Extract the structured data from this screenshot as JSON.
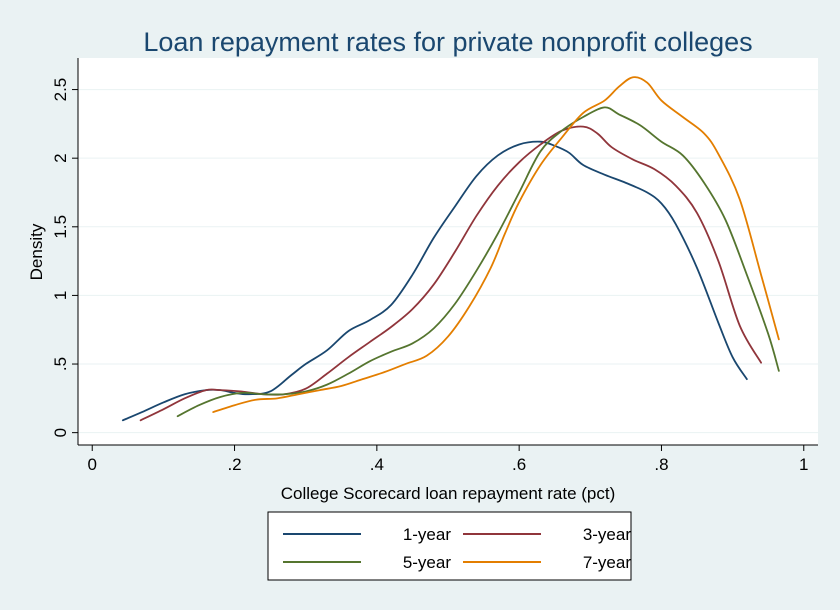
{
  "chart_data": {
    "type": "line",
    "title": "Loan repayment rates for private nonprofit colleges",
    "xlabel": "College Scorecard loan repayment rate (pct)",
    "ylabel": "Density",
    "xlim": [
      -0.02,
      1.02
    ],
    "ylim": [
      -0.09,
      2.73
    ],
    "x_ticks": [
      {
        "value": 0,
        "label": "0"
      },
      {
        "value": 0.2,
        "label": ".2"
      },
      {
        "value": 0.4,
        "label": ".4"
      },
      {
        "value": 0.6,
        "label": ".6"
      },
      {
        "value": 0.8,
        "label": ".8"
      },
      {
        "value": 1,
        "label": "1"
      }
    ],
    "y_ticks": [
      {
        "value": 0,
        "label": "0"
      },
      {
        "value": 0.5,
        "label": ".5"
      },
      {
        "value": 1,
        "label": "1"
      },
      {
        "value": 1.5,
        "label": "1.5"
      },
      {
        "value": 2,
        "label": "2"
      },
      {
        "value": 2.5,
        "label": "2.5"
      }
    ],
    "grid": "horizontal",
    "legend_position": "bottom",
    "colors": {
      "background": "#eaf2f3",
      "plot_background": "#ffffff",
      "grid": "#eaf2f3",
      "title": "#1a476f"
    },
    "series": [
      {
        "name": "1-year",
        "color": "#1a476f",
        "points": [
          [
            0.043,
            0.09
          ],
          [
            0.07,
            0.15
          ],
          [
            0.1,
            0.22
          ],
          [
            0.13,
            0.28
          ],
          [
            0.16,
            0.31
          ],
          [
            0.18,
            0.31
          ],
          [
            0.2,
            0.29
          ],
          [
            0.22,
            0.28
          ],
          [
            0.25,
            0.3
          ],
          [
            0.28,
            0.42
          ],
          [
            0.3,
            0.5
          ],
          [
            0.33,
            0.6
          ],
          [
            0.36,
            0.74
          ],
          [
            0.39,
            0.82
          ],
          [
            0.42,
            0.93
          ],
          [
            0.45,
            1.15
          ],
          [
            0.48,
            1.42
          ],
          [
            0.51,
            1.65
          ],
          [
            0.54,
            1.87
          ],
          [
            0.57,
            2.02
          ],
          [
            0.6,
            2.1
          ],
          [
            0.63,
            2.12
          ],
          [
            0.65,
            2.09
          ],
          [
            0.67,
            2.04
          ],
          [
            0.69,
            1.95
          ],
          [
            0.72,
            1.88
          ],
          [
            0.75,
            1.82
          ],
          [
            0.78,
            1.75
          ],
          [
            0.8,
            1.67
          ],
          [
            0.82,
            1.52
          ],
          [
            0.85,
            1.2
          ],
          [
            0.88,
            0.8
          ],
          [
            0.9,
            0.55
          ],
          [
            0.92,
            0.39
          ]
        ]
      },
      {
        "name": "3-year",
        "color": "#90353b",
        "points": [
          [
            0.068,
            0.09
          ],
          [
            0.1,
            0.17
          ],
          [
            0.13,
            0.25
          ],
          [
            0.16,
            0.31
          ],
          [
            0.18,
            0.31
          ],
          [
            0.21,
            0.3
          ],
          [
            0.24,
            0.28
          ],
          [
            0.27,
            0.28
          ],
          [
            0.3,
            0.32
          ],
          [
            0.33,
            0.43
          ],
          [
            0.36,
            0.55
          ],
          [
            0.39,
            0.66
          ],
          [
            0.42,
            0.77
          ],
          [
            0.45,
            0.9
          ],
          [
            0.48,
            1.08
          ],
          [
            0.51,
            1.32
          ],
          [
            0.54,
            1.58
          ],
          [
            0.57,
            1.8
          ],
          [
            0.6,
            1.97
          ],
          [
            0.63,
            2.1
          ],
          [
            0.66,
            2.2
          ],
          [
            0.69,
            2.23
          ],
          [
            0.71,
            2.18
          ],
          [
            0.73,
            2.08
          ],
          [
            0.76,
            1.99
          ],
          [
            0.79,
            1.92
          ],
          [
            0.82,
            1.8
          ],
          [
            0.85,
            1.6
          ],
          [
            0.88,
            1.25
          ],
          [
            0.91,
            0.78
          ],
          [
            0.94,
            0.51
          ]
        ]
      },
      {
        "name": "5-year",
        "color": "#55752f",
        "points": [
          [
            0.12,
            0.12
          ],
          [
            0.15,
            0.2
          ],
          [
            0.18,
            0.26
          ],
          [
            0.21,
            0.29
          ],
          [
            0.24,
            0.28
          ],
          [
            0.27,
            0.28
          ],
          [
            0.3,
            0.3
          ],
          [
            0.33,
            0.35
          ],
          [
            0.36,
            0.43
          ],
          [
            0.39,
            0.52
          ],
          [
            0.42,
            0.59
          ],
          [
            0.45,
            0.65
          ],
          [
            0.48,
            0.76
          ],
          [
            0.51,
            0.94
          ],
          [
            0.54,
            1.18
          ],
          [
            0.57,
            1.45
          ],
          [
            0.6,
            1.75
          ],
          [
            0.63,
            2.05
          ],
          [
            0.66,
            2.2
          ],
          [
            0.69,
            2.3
          ],
          [
            0.72,
            2.37
          ],
          [
            0.74,
            2.32
          ],
          [
            0.77,
            2.24
          ],
          [
            0.8,
            2.12
          ],
          [
            0.83,
            2.02
          ],
          [
            0.86,
            1.82
          ],
          [
            0.89,
            1.55
          ],
          [
            0.92,
            1.15
          ],
          [
            0.95,
            0.72
          ],
          [
            0.965,
            0.45
          ]
        ]
      },
      {
        "name": "7-year",
        "color": "#e37e00",
        "points": [
          [
            0.17,
            0.15
          ],
          [
            0.2,
            0.2
          ],
          [
            0.23,
            0.24
          ],
          [
            0.26,
            0.25
          ],
          [
            0.29,
            0.28
          ],
          [
            0.32,
            0.31
          ],
          [
            0.35,
            0.34
          ],
          [
            0.38,
            0.39
          ],
          [
            0.41,
            0.44
          ],
          [
            0.44,
            0.5
          ],
          [
            0.47,
            0.56
          ],
          [
            0.5,
            0.7
          ],
          [
            0.53,
            0.92
          ],
          [
            0.56,
            1.2
          ],
          [
            0.58,
            1.45
          ],
          [
            0.6,
            1.68
          ],
          [
            0.63,
            1.95
          ],
          [
            0.66,
            2.15
          ],
          [
            0.69,
            2.33
          ],
          [
            0.72,
            2.42
          ],
          [
            0.74,
            2.52
          ],
          [
            0.76,
            2.59
          ],
          [
            0.78,
            2.55
          ],
          [
            0.8,
            2.42
          ],
          [
            0.83,
            2.3
          ],
          [
            0.86,
            2.18
          ],
          [
            0.88,
            2.03
          ],
          [
            0.91,
            1.7
          ],
          [
            0.94,
            1.15
          ],
          [
            0.965,
            0.68
          ]
        ]
      }
    ]
  }
}
